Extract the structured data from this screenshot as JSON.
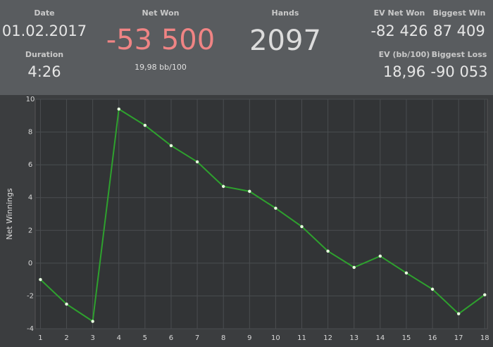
{
  "stats": {
    "date": {
      "label": "Date",
      "value": "01.02.2017"
    },
    "duration": {
      "label": "Duration",
      "value": "4:26"
    },
    "net_won": {
      "label": "Net Won",
      "value": "-53 500",
      "sub": "19,98 bb/100"
    },
    "hands": {
      "label": "Hands",
      "value": "2097"
    },
    "ev_net_won": {
      "label": "EV Net Won",
      "value": "-82 426"
    },
    "biggest_win": {
      "label": "Biggest Win",
      "value": "87 409"
    },
    "ev_bb": {
      "label": "EV (bb/100)",
      "value": "18,96"
    },
    "biggest_loss": {
      "label": "Biggest Loss",
      "value": "-90 053"
    }
  },
  "chart_data": {
    "type": "line",
    "y_label": "Net Winnings",
    "x": [
      1,
      2,
      3,
      4,
      5,
      6,
      7,
      8,
      9,
      10,
      11,
      12,
      13,
      14,
      15,
      16,
      17,
      18
    ],
    "series": [
      {
        "name": "Net Winnings",
        "color": "#2ea12e",
        "values": [
          -1.0,
          -2.5,
          -3.55,
          9.4,
          8.41,
          7.17,
          6.18,
          4.68,
          4.38,
          3.35,
          2.23,
          0.73,
          -0.26,
          0.43,
          -0.6,
          -1.59,
          -3.09,
          -1.93
        ]
      }
    ],
    "xlim": [
      0.8,
      18.1
    ],
    "ylim": [
      -4,
      10
    ],
    "xticks": [
      1,
      2,
      3,
      4,
      5,
      6,
      7,
      8,
      9,
      10,
      11,
      12,
      13,
      14,
      15,
      16,
      17,
      18
    ],
    "yticks": [
      -4,
      -2,
      0,
      2,
      4,
      6,
      8,
      10
    ],
    "grid": true
  }
}
